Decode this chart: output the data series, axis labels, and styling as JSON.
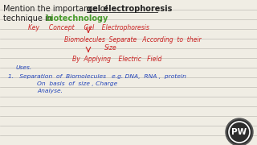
{
  "bg_color": "#f0ede4",
  "line_color": "#c0bdb5",
  "text_color_black": "#222222",
  "text_color_red": "#cc2222",
  "text_color_blue": "#2244bb",
  "text_color_green": "#4a9c2e",
  "logo_text": "PW",
  "logo_bg": "#2d2d2d",
  "title_line1_normal": "Mention the importance of ",
  "title_line1_bold": "gel electrophoresis",
  "title_line2_normal": "technique in ",
  "title_line2_green": "biotechnology",
  "title_line2_end": ".",
  "key_concept": "Key     Concept     Gel    Electrophoresis",
  "bio_line1": "Biomolecules  Separate   According  to  their",
  "bio_line2": "Size",
  "by_line": "By  Applying    Electric   Field",
  "uses_label": "Uses.",
  "point1a": "1.   Separation  of  Biomolecules   e.g. DNA,  RNA ,  protein",
  "point1b": "On  basis  of  size , Charge",
  "point1c": "Analyse."
}
